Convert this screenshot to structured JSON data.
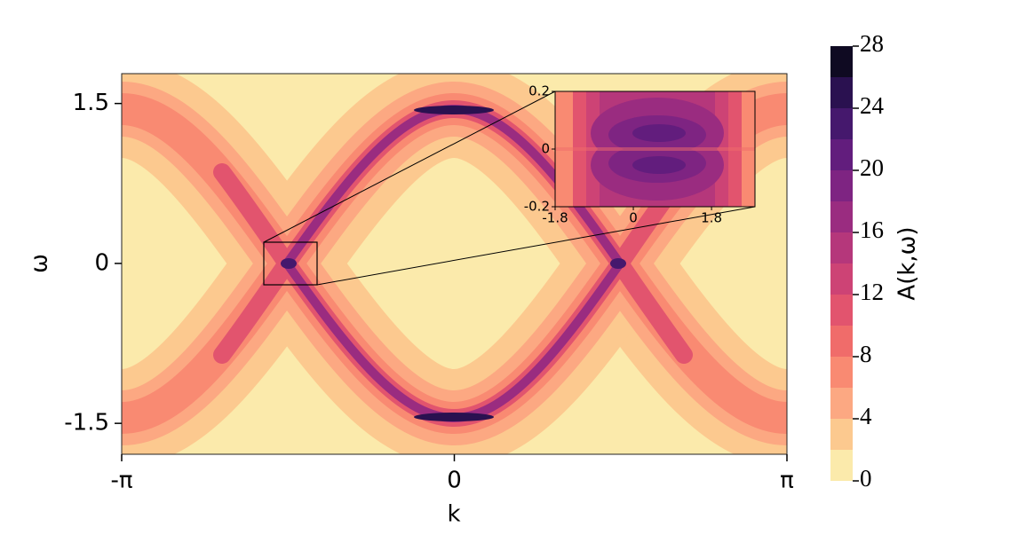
{
  "chart_data": {
    "type": "contourf",
    "xlabel": "k",
    "ylabel": "ω",
    "xlim": [
      -3.14159,
      3.14159
    ],
    "ylim": [
      -1.79,
      1.78
    ],
    "xticks": [
      {
        "value": -3.14159,
        "label": "-π"
      },
      0,
      {
        "value": 3.14159,
        "label": "π"
      }
    ],
    "yticks": [
      -1.5,
      0,
      1.5
    ],
    "colorbar": {
      "label": "A(k,ω)",
      "lim": [
        0,
        28
      ],
      "ticks": [
        0,
        4,
        8,
        12,
        16,
        20,
        24,
        28
      ],
      "levels": [
        0,
        2,
        4,
        6,
        8,
        10,
        12,
        14,
        16,
        18,
        20,
        22,
        24,
        26,
        28
      ],
      "colors": [
        "#fbeaab",
        "#fcc98f",
        "#fca882",
        "#f98a72",
        "#f06c6a",
        "#e2546e",
        "#cd4375",
        "#b5377b",
        "#9a2c80",
        "#7e2482",
        "#621d7d",
        "#45186d",
        "#2a1150",
        "#0f0a22"
      ]
    },
    "inset": {
      "xlim": [
        -1.8,
        2.8
      ],
      "ylim": [
        -0.2,
        0.2
      ],
      "xticks": [
        -1.8,
        0,
        1.8
      ],
      "yticks": [
        -0.2,
        0,
        0.2
      ]
    }
  }
}
